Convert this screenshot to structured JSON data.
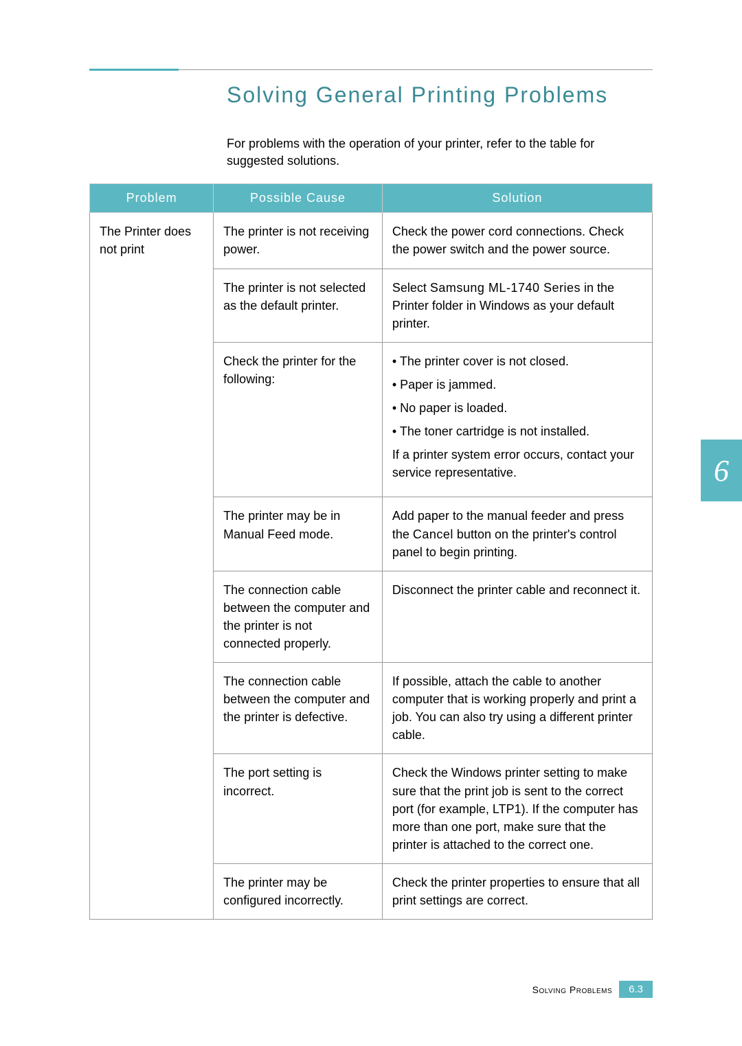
{
  "colors": {
    "accent": "#4db0ba",
    "rule": "#4db0ba",
    "header_bg": "#5bb8c2",
    "tab_bg": "#5bb8c2",
    "footer_bg": "#5bb8c2",
    "title_color": "#3a8a94"
  },
  "title": "Solving General Printing Problems",
  "intro": "For problems with the operation of your printer, refer to the table for suggested solutions.",
  "headers": {
    "problem": "Problem",
    "cause": "Possible Cause",
    "solution": "Solution"
  },
  "problem": "The Printer does not print",
  "rows": [
    {
      "cause": "The printer is not receiving power.",
      "solution_plain": "Check the power cord connections. Check the power switch and the power source."
    },
    {
      "cause": "The printer is not selected as the default printer.",
      "solution_rich": [
        {
          "t": "Select "
        },
        {
          "t": "Samsung ML-1740 Series",
          "spaced": true
        },
        {
          "t": " in the Printer folder in Windows as your default printer."
        }
      ]
    },
    {
      "cause": "Check the printer for the following:",
      "solution_bullets": [
        "The printer cover is not closed.",
        "Paper is jammed.",
        "No paper is loaded.",
        "The toner cartridge is not installed."
      ],
      "solution_after": "If a printer system error occurs, contact your service representative."
    },
    {
      "cause": "The printer may be in Manual Feed mode.",
      "solution_rich": [
        {
          "t": "Add paper to the manual feeder and press the "
        },
        {
          "t": "Cancel",
          "spaced": true
        },
        {
          "t": " button on the printer's control panel to begin printing."
        }
      ]
    },
    {
      "cause": "The connection cable between the computer and the printer is not connected properly.",
      "solution_plain": "Disconnect the printer cable and reconnect it."
    },
    {
      "cause": "The connection cable between the computer and the printer is defective.",
      "solution_plain": "If possible, attach the cable to another computer that is working properly and print a job. You can also try using a different printer cable."
    },
    {
      "cause": "The port setting is incorrect.",
      "solution_plain": "Check the Windows printer setting to make sure that the print job is sent to the correct port (for example, LTP1). If the computer has more than one port, make sure that the printer is attached to the correct one."
    },
    {
      "cause": "The printer may be configured incorrectly.",
      "solution_plain": "Check the printer properties to ensure that all print settings are correct."
    }
  ],
  "chapter_number": "6",
  "footer_text": "Solving Problems",
  "footer_page": "6.3"
}
